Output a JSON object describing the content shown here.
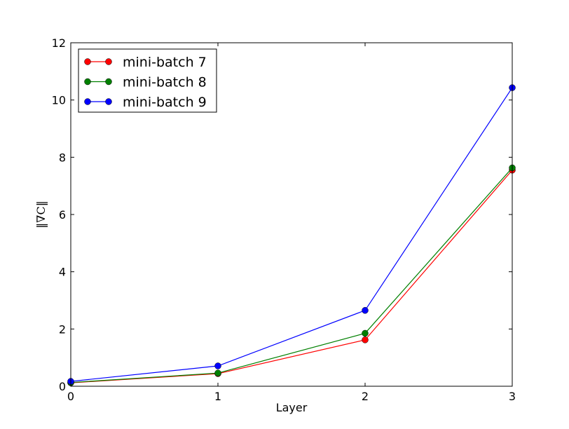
{
  "chart_data": {
    "type": "line",
    "title": "",
    "xlabel": "Layer",
    "ylabel": "‖∇C‖",
    "xlim": [
      0,
      3
    ],
    "ylim": [
      0,
      12
    ],
    "xticks": [
      "0",
      "1",
      "2",
      "3"
    ],
    "yticks": [
      "0",
      "2",
      "4",
      "6",
      "8",
      "10",
      "12"
    ],
    "grid": false,
    "legend_position": "top-left",
    "x": [
      0,
      1,
      2,
      3
    ],
    "series": [
      {
        "name": "mini-batch 7",
        "color": "#ff0000",
        "values": [
          0.12,
          0.44,
          1.62,
          7.55
        ]
      },
      {
        "name": "mini-batch 8",
        "color": "#008000",
        "values": [
          0.13,
          0.46,
          1.85,
          7.63
        ]
      },
      {
        "name": "mini-batch 9",
        "color": "#0000ff",
        "values": [
          0.17,
          0.71,
          2.65,
          10.43
        ]
      }
    ]
  }
}
